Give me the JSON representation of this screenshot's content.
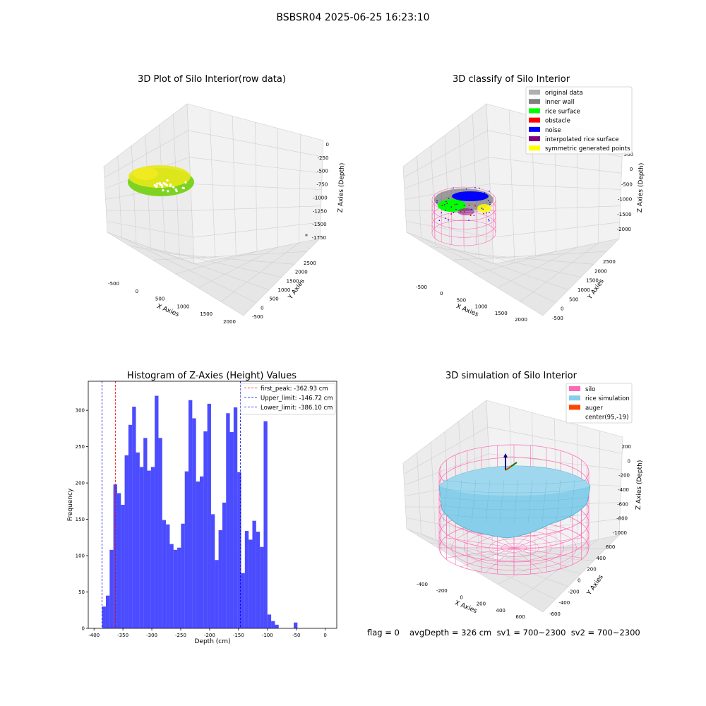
{
  "figure": {
    "suptitle": "BSBSR04 2025-06-25 16:23:10",
    "footer_flag": "flag = 0",
    "footer_stats": "avgDepth = 326 cm  sv1 = 700~2300  sv2 = 700~2300"
  },
  "chart_data": [
    {
      "type": "scatter3d",
      "title": "3D Plot of Silo Interior(row data)",
      "xlabel": "X Axies",
      "ylabel": "Y Axies",
      "zlabel": "Z Axies (Depth)",
      "xticks": [
        "-500",
        "0",
        "500",
        "1000",
        "1500",
        "2000"
      ],
      "yticks": [
        "-500",
        "0",
        "500",
        "1000",
        "1500",
        "2000",
        "2500"
      ],
      "zticks": [
        "0",
        "-250",
        "-500",
        "-750",
        "-1000",
        "-1250",
        "-1500",
        "-1750"
      ],
      "xlim": [
        -650,
        2100
      ],
      "ylim": [
        -650,
        2700
      ],
      "zlim": [
        -1850,
        100
      ],
      "colors": {
        "cloud_dark": "#7ed321",
        "cloud_light": "#e8e81a",
        "outlier": "#888888"
      }
    },
    {
      "type": "scatter3d",
      "title": "3D classify of Silo Interior",
      "xlabel": "X Axies",
      "ylabel": "Y Axies",
      "zlabel": "Z Axies (Depth)",
      "xticks": [
        "-500",
        "0",
        "500",
        "1000",
        "1500",
        "2000"
      ],
      "yticks": [
        "-500",
        "0",
        "500",
        "1000",
        "1500",
        "2000",
        "2500"
      ],
      "zticks": [
        "500",
        "0",
        "-500",
        "-1000",
        "-1500",
        "-2000"
      ],
      "legend": [
        {
          "label": "original data",
          "color": "#b0b0b0"
        },
        {
          "label": "inner wall",
          "color": "#808080"
        },
        {
          "label": "rice surface",
          "color": "#00ff00"
        },
        {
          "label": "obstacle",
          "color": "#ff0000"
        },
        {
          "label": "noise",
          "color": "#0000ff"
        },
        {
          "label": "interpolated rice surface",
          "color": "#800080"
        },
        {
          "label": "symmetric generated points",
          "color": "#ffff00"
        }
      ],
      "legend_position": "top-right",
      "colors": {
        "silo_wire": "#ff69b4"
      }
    },
    {
      "type": "bar",
      "title": "Histogram of Z-Axies (Height) Values",
      "xlabel": "Depth (cm)",
      "ylabel": "Frequency",
      "xlim": [
        -410,
        20
      ],
      "ylim": [
        0,
        340
      ],
      "xticks": [
        -400,
        -350,
        -300,
        -250,
        -200,
        -150,
        -100,
        -50,
        0
      ],
      "yticks": [
        0,
        50,
        100,
        150,
        200,
        250,
        300
      ],
      "bin_width": 6.5,
      "bin_start": -386,
      "values": [
        30,
        45,
        108,
        198,
        186,
        170,
        238,
        280,
        305,
        242,
        222,
        262,
        217,
        222,
        320,
        262,
        149,
        143,
        116,
        108,
        111,
        144,
        216,
        314,
        289,
        202,
        209,
        271,
        309,
        157,
        94,
        135,
        173,
        296,
        270,
        304,
        215,
        76,
        134,
        122,
        148,
        133,
        112,
        285,
        19,
        10,
        5,
        0,
        0,
        0,
        0,
        8
      ],
      "bar_color": "#0000ff",
      "bar_opacity": 0.7,
      "vlines": [
        {
          "label": "first_peak: -362.93 cm",
          "x": -362.93,
          "color": "#ff0000"
        },
        {
          "label": "Upper_limit: -146.72 cm",
          "x": -146.72,
          "color": "#0000ff"
        },
        {
          "label": "Lower_limit: -386.10 cm",
          "x": -386.1,
          "color": "#0000ff"
        }
      ],
      "legend_position": "top-right"
    },
    {
      "type": "surface3d",
      "title": "3D simulation of Silo Interior",
      "xlabel": "X Axies",
      "ylabel": "Y Axies",
      "zlabel": "Z Axies (Depth)",
      "xticks": [
        "-400",
        "-200",
        "0",
        "200",
        "400",
        "600"
      ],
      "yticks": [
        "600",
        "400",
        "200",
        "0",
        "-200",
        "-400",
        "-600"
      ],
      "zticks": [
        "200",
        "0",
        "-200",
        "-400",
        "-600",
        "-800",
        "-1000"
      ],
      "legend": [
        {
          "label": "silo",
          "color": "#ff69b4"
        },
        {
          "label": "rice simulation",
          "color": "#87ceeb"
        },
        {
          "label": "auger",
          "color": "#ff4500"
        },
        {
          "label": "center(95,-19)",
          "color": ""
        }
      ],
      "legend_position": "top-right"
    }
  ]
}
